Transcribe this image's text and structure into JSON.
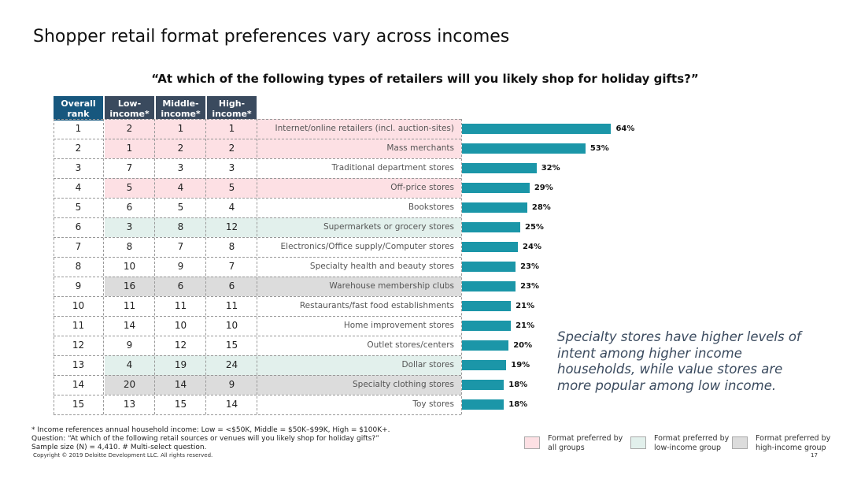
{
  "title": "Shopper retail format preferences vary across incomes",
  "question": "“At which of the following types of retailers will you likely shop for holiday gifts?”",
  "headers": {
    "overall_line1": "Overall",
    "overall_line2": "rank",
    "low_line1": "Low-",
    "low_line2": "income*",
    "middle_line1": "Middle-",
    "middle_line2": "income*",
    "high_line1": "High-",
    "high_line2": "income*"
  },
  "colors": {
    "all_groups": "#fde0e4",
    "low_income": "#e2f0ec",
    "high_income": "#dcdcdc",
    "bar": "#1b96a8",
    "header_dark": "#3a4a5e",
    "header_blue": "#17577e"
  },
  "chart_data": {
    "type": "bar",
    "orientation": "horizontal",
    "categories": [
      "Internet/online retailers (incl. auction-sites)",
      "Mass merchants",
      "Traditional department stores",
      "Off-price stores",
      "Bookstores",
      "Supermarkets or grocery stores",
      "Electronics/Office supply/Computer stores",
      "Specialty health and beauty stores",
      "Warehouse membership clubs",
      "Restaurants/fast food establishments",
      "Home improvement stores",
      "Outlet stores/centers",
      "Dollar stores",
      "Specialty clothing stores",
      "Toy stores"
    ],
    "values": [
      64,
      53,
      32,
      29,
      28,
      25,
      24,
      23,
      23,
      21,
      21,
      20,
      19,
      18,
      18
    ],
    "value_labels": [
      "64%",
      "53%",
      "32%",
      "29%",
      "28%",
      "25%",
      "24%",
      "23%",
      "23%",
      "21%",
      "21%",
      "20%",
      "19%",
      "18%",
      "18%"
    ],
    "xlim": [
      0,
      100
    ],
    "table": {
      "overall_rank": [
        "1",
        "2",
        "3",
        "4",
        "5",
        "6",
        "7",
        "8",
        "9",
        "10",
        "11",
        "12",
        "13",
        "14",
        "15"
      ],
      "low_income": [
        "2",
        "1",
        "7",
        "5",
        "6",
        "3",
        "8",
        "10",
        "16",
        "11",
        "14",
        "9",
        "4",
        "20",
        "13"
      ],
      "middle_income": [
        "1",
        "2",
        "3",
        "4",
        "5",
        "8",
        "7",
        "9",
        "6",
        "11",
        "10",
        "12",
        "19",
        "14",
        "15"
      ],
      "high_income": [
        "1",
        "2",
        "3",
        "5",
        "4",
        "12",
        "8",
        "7",
        "6",
        "11",
        "10",
        "15",
        "24",
        "9",
        "14"
      ],
      "highlight": [
        "all",
        "all",
        "none",
        "all",
        "none",
        "low",
        "none",
        "none",
        "high",
        "none",
        "none",
        "none",
        "low",
        "high",
        "none"
      ]
    }
  },
  "note": "Specialty stores have higher levels of intent among higher income households, while value stores are more popular among low income.",
  "footnotes": [
    "* Income references annual household income: Low = <$50K, Middle = $50K–$99K, High = $100K+.",
    "Question: “At which of the following retail sources or venues will you likely shop for holiday gifts?”",
    "Sample size (N) = 4,410. # Multi-select question."
  ],
  "copyright": "Copyright © 2019 Deloitte Development LLC. All rights reserved.",
  "page_number": "17",
  "legend": [
    {
      "line1": "Format preferred by",
      "line2": "all groups",
      "key": "all_groups"
    },
    {
      "line1": "Format preferred by",
      "line2": "low-income group",
      "key": "low_income"
    },
    {
      "line1": "Format preferred by",
      "line2": "high-income group",
      "key": "high_income"
    }
  ]
}
